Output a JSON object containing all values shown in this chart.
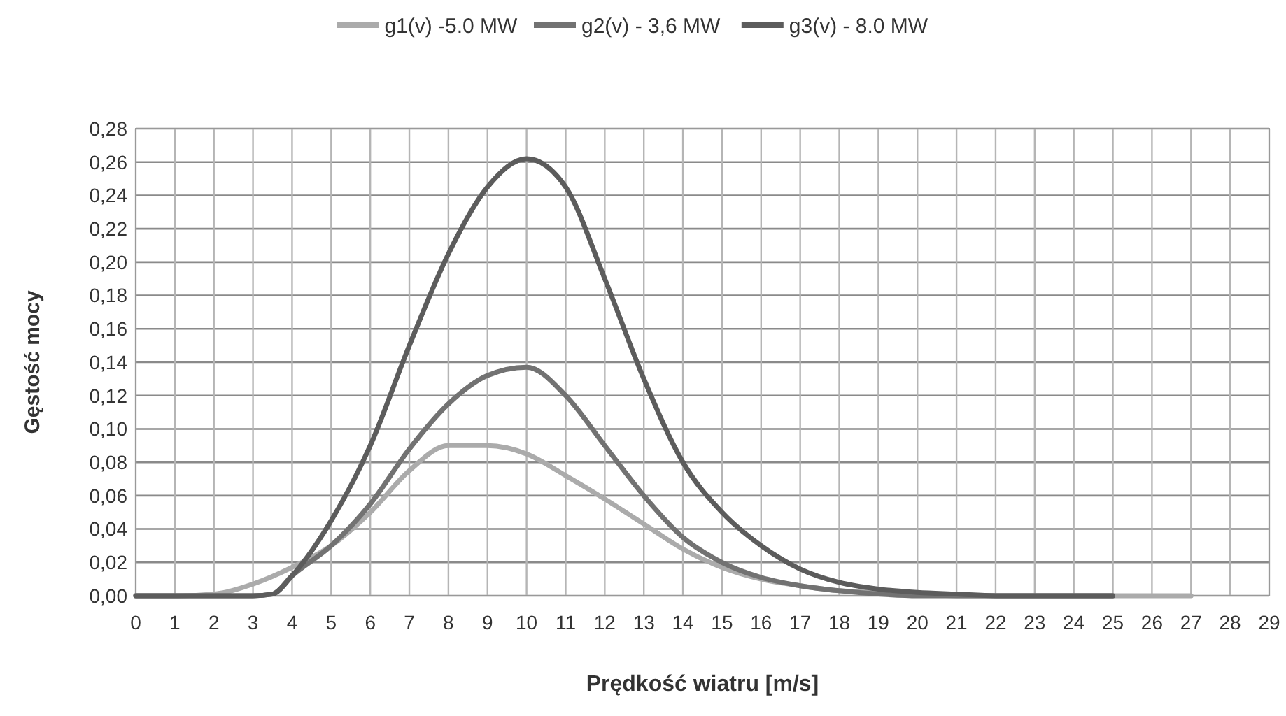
{
  "chart_data": {
    "type": "line",
    "xlabel": "Prędkość wiatru [m/s]",
    "ylabel": "Gęstość mocy",
    "legend": "top",
    "grid": true,
    "line_style": "solid",
    "xlim": [
      0,
      29
    ],
    "xticks": [
      0,
      1,
      2,
      3,
      4,
      5,
      6,
      7,
      8,
      9,
      10,
      11,
      12,
      13,
      14,
      15,
      16,
      17,
      18,
      19,
      20,
      21,
      22,
      23,
      24,
      25,
      26,
      27,
      28,
      29
    ],
    "ylim": [
      0,
      0.28
    ],
    "yticks": [
      {
        "value": 0,
        "label": "0,00"
      },
      {
        "value": 0.02,
        "label": "0,02"
      },
      {
        "value": 0.04,
        "label": "0,04"
      },
      {
        "value": 0.06,
        "label": "0,06"
      },
      {
        "value": 0.08,
        "label": "0,08"
      },
      {
        "value": 0.1,
        "label": "0,10"
      },
      {
        "value": 0.12,
        "label": "0,12"
      },
      {
        "value": 0.14,
        "label": "0,14"
      },
      {
        "value": 0.16,
        "label": "0,16"
      },
      {
        "value": 0.18,
        "label": "0,18"
      },
      {
        "value": 0.2,
        "label": "0,20"
      },
      {
        "value": 0.22,
        "label": "0,22"
      },
      {
        "value": 0.24,
        "label": "0,24"
      },
      {
        "value": 0.26,
        "label": "0,26"
      },
      {
        "value": 0.28,
        "label": "0,28"
      }
    ],
    "series": [
      {
        "name": "g1(v) -5.0 MW",
        "color": "#ababab",
        "x": [
          0,
          1,
          2,
          3,
          4,
          5,
          6,
          7,
          8,
          9,
          10,
          11,
          12,
          13,
          14,
          15,
          16,
          17,
          18,
          19,
          20,
          21,
          22,
          23,
          24,
          25,
          26,
          27
        ],
        "values": [
          0,
          0,
          0.001,
          0.007,
          0.017,
          0.03,
          0.05,
          0.075,
          0.09,
          0.09,
          0.085,
          0.072,
          0.058,
          0.043,
          0.028,
          0.017,
          0.01,
          0.006,
          0.003,
          0.002,
          0.001,
          0,
          0,
          0,
          0,
          0,
          0,
          0
        ]
      },
      {
        "name": "g2(v) - 3,6 MW",
        "color": "#727272",
        "x": [
          0,
          1,
          2,
          3,
          3.5,
          4,
          5,
          6,
          7,
          8,
          9,
          10,
          11,
          12,
          13,
          14,
          15,
          16,
          17,
          18,
          19,
          20,
          21,
          22,
          23,
          24,
          25
        ],
        "values": [
          0,
          0,
          0,
          0,
          0.001,
          0.012,
          0.03,
          0.055,
          0.088,
          0.115,
          0.132,
          0.137,
          0.12,
          0.09,
          0.06,
          0.035,
          0.02,
          0.011,
          0.006,
          0.003,
          0.001,
          0,
          0,
          0,
          0,
          0,
          0
        ]
      },
      {
        "name": "g3(v) - 8.0 MW",
        "color": "#5c5c5c",
        "x": [
          0,
          1,
          2,
          3,
          3.5,
          4,
          5,
          6,
          7,
          8,
          9,
          10,
          11,
          12,
          13,
          14,
          15,
          16,
          17,
          18,
          19,
          20,
          21,
          22,
          23,
          24,
          25
        ],
        "values": [
          0,
          0,
          0,
          0,
          0.001,
          0.012,
          0.045,
          0.09,
          0.15,
          0.205,
          0.245,
          0.262,
          0.245,
          0.19,
          0.13,
          0.08,
          0.05,
          0.03,
          0.016,
          0.008,
          0.004,
          0.002,
          0.001,
          0,
          0,
          0,
          0
        ]
      }
    ]
  }
}
